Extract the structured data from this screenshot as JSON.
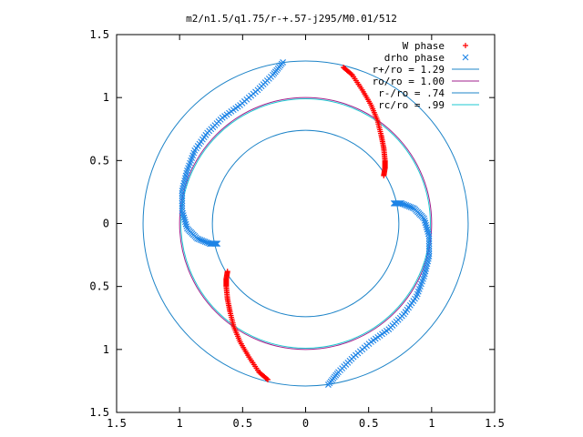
{
  "chart_data": {
    "type": "scatter",
    "title": "m2/n1.5/q1.75/r-+.57-j295/M0.01/512",
    "xlabel": "",
    "ylabel": "",
    "xlim": [
      -1.5,
      1.5
    ],
    "ylim": [
      -1.5,
      1.5
    ],
    "x_ticks": [
      -1.5,
      -1,
      -0.5,
      0,
      0.5,
      1,
      1.5
    ],
    "y_ticks": [
      -1.5,
      -1,
      -0.5,
      0,
      0.5,
      1,
      1.5
    ],
    "x_tick_labels": [
      "1.5",
      "1",
      "0.5",
      "0",
      "0.5",
      "1",
      "1.5"
    ],
    "y_tick_labels": [
      "1.5",
      "1",
      "0.5",
      "0",
      "0.5",
      "1",
      "1.5"
    ],
    "grid": false,
    "legend_position": "top-right",
    "circles": [
      {
        "name": "r+/ro = 1.29",
        "radius": 1.29,
        "color": "#1e84c8"
      },
      {
        "name": "ro/ro = 1.00",
        "radius": 1.0,
        "color": "#a0208c"
      },
      {
        "name": "r-/ro = .74",
        "radius": 0.74,
        "color": "#1e84c8"
      },
      {
        "name": "rc/ro = .99",
        "radius": 0.99,
        "color": "#1ec8d2"
      }
    ],
    "series": [
      {
        "name": "W phase",
        "marker": "+",
        "color": "#ff0000",
        "arms": [
          {
            "x": [
              0.3,
              0.37,
              0.45,
              0.52,
              0.57,
              0.6,
              0.62,
              0.63,
              0.63,
              0.62
            ],
            "y": [
              1.24,
              1.18,
              1.06,
              0.94,
              0.82,
              0.7,
              0.6,
              0.5,
              0.44,
              0.38
            ]
          },
          {
            "x": [
              -0.3,
              -0.37,
              -0.45,
              -0.52,
              -0.57,
              -0.6,
              -0.62,
              -0.63,
              -0.63,
              -0.62
            ],
            "y": [
              -1.24,
              -1.18,
              -1.06,
              -0.94,
              -0.82,
              -0.7,
              -0.6,
              -0.5,
              -0.44,
              -0.38
            ]
          }
        ]
      },
      {
        "name": "drho phase",
        "marker": "x",
        "color": "#1e84e6",
        "arms": [
          {
            "x": [
              -0.18,
              -0.26,
              -0.38,
              -0.52,
              -0.66,
              -0.78,
              -0.88,
              -0.94,
              -0.98,
              -0.98,
              -0.94,
              -0.86,
              -0.76,
              -0.7
            ],
            "y": [
              1.28,
              1.18,
              1.06,
              0.94,
              0.84,
              0.72,
              0.58,
              0.42,
              0.26,
              0.1,
              -0.04,
              -0.12,
              -0.16,
              -0.16
            ]
          },
          {
            "x": [
              0.18,
              0.26,
              0.38,
              0.52,
              0.66,
              0.78,
              0.88,
              0.94,
              0.98,
              0.98,
              0.94,
              0.86,
              0.76,
              0.7
            ],
            "y": [
              -1.28,
              -1.18,
              -1.06,
              -0.94,
              -0.84,
              -0.72,
              -0.58,
              -0.42,
              -0.26,
              -0.1,
              0.04,
              0.12,
              0.16,
              0.16
            ]
          }
        ]
      }
    ]
  }
}
